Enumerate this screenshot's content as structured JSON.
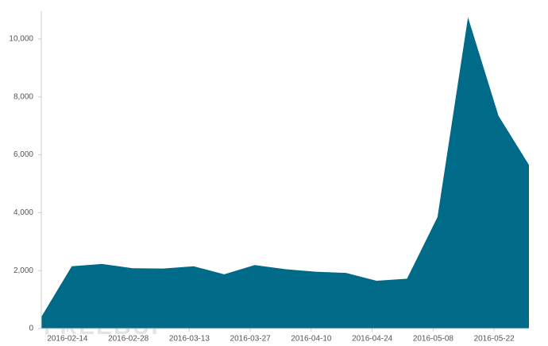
{
  "chart_data": {
    "type": "area",
    "color": "#006b88",
    "watermark": "FREEBUF",
    "x": [
      "2016-02-08",
      "2016-02-15",
      "2016-02-22",
      "2016-02-29",
      "2016-03-07",
      "2016-03-14",
      "2016-03-21",
      "2016-03-28",
      "2016-04-04",
      "2016-04-11",
      "2016-04-18",
      "2016-04-25",
      "2016-05-02",
      "2016-05-09",
      "2016-05-16",
      "2016-05-23",
      "2016-05-30"
    ],
    "values": [
      400,
      2150,
      2230,
      2080,
      2070,
      2150,
      1870,
      2190,
      2050,
      1960,
      1920,
      1650,
      1720,
      3850,
      10750,
      7350,
      5650
    ],
    "xlim": [
      "2016-02-08",
      "2016-05-30"
    ],
    "xticks": [
      "2016-02-14",
      "2016-02-28",
      "2016-03-13",
      "2016-03-27",
      "2016-04-10",
      "2016-04-24",
      "2016-05-08",
      "2016-05-22"
    ],
    "ylim": [
      0,
      10000
    ],
    "yticks": [
      0,
      {
        "value": 2000,
        "label": "2,000"
      },
      {
        "value": 4000,
        "label": "4,000"
      },
      {
        "value": 6000,
        "label": "6,000"
      },
      {
        "value": 8000,
        "label": "8,000"
      },
      {
        "value": 10000,
        "label": "10,000"
      }
    ]
  }
}
